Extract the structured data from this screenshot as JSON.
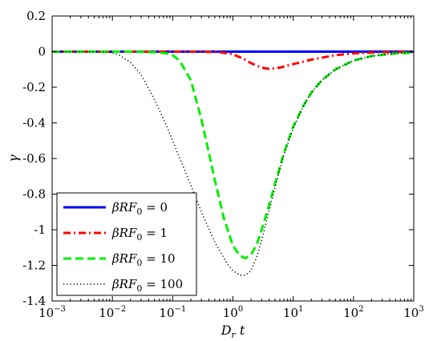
{
  "chart_data": {
    "type": "line",
    "title": "",
    "xlabel": "D_r t",
    "ylabel": "γ",
    "xscale": "log",
    "xlim": [
      0.001,
      1000
    ],
    "ylim": [
      -1.4,
      0.2
    ],
    "grid": false,
    "legend_position": "bottom-left",
    "x_ticks": [
      {
        "value": 0.001,
        "base": "10",
        "exp": "−3"
      },
      {
        "value": 0.01,
        "base": "10",
        "exp": "−2"
      },
      {
        "value": 0.1,
        "base": "10",
        "exp": "−1"
      },
      {
        "value": 1,
        "base": "10",
        "exp": "0"
      },
      {
        "value": 10,
        "base": "10",
        "exp": "1"
      },
      {
        "value": 100,
        "base": "10",
        "exp": "2"
      },
      {
        "value": 1000,
        "base": "10",
        "exp": "3"
      }
    ],
    "y_ticks": [
      {
        "value": 0.2,
        "label": "0.2"
      },
      {
        "value": 0,
        "label": "0"
      },
      {
        "value": -0.2,
        "label": "-0.2"
      },
      {
        "value": -0.4,
        "label": "-0.4"
      },
      {
        "value": -0.6,
        "label": "-0.6"
      },
      {
        "value": -0.8,
        "label": "-0.8"
      },
      {
        "value": -1.0,
        "label": "-1"
      },
      {
        "value": -1.2,
        "label": "-1.2"
      },
      {
        "value": -1.4,
        "label": "-1.4"
      }
    ],
    "series": [
      {
        "name": "βRF₀ = 0",
        "legend_lhs": "βRF",
        "legend_sub": "0",
        "legend_rhs": " = 0",
        "color": "#0000ff",
        "style": "solid",
        "x": [
          0.001,
          0.01,
          0.1,
          1,
          10,
          100,
          1000
        ],
        "y": [
          0,
          0,
          0,
          0,
          0,
          0,
          0
        ]
      },
      {
        "name": "βRF₀ = 1",
        "legend_lhs": "βRF",
        "legend_sub": "0",
        "legend_rhs": " = 1",
        "color": "#ff0000",
        "style": "dashdot",
        "x": [
          0.001,
          0.1,
          0.3,
          0.6,
          1,
          1.5,
          2,
          3,
          4,
          6,
          10,
          20,
          50,
          100,
          300,
          1000
        ],
        "y": [
          0,
          0,
          0,
          -0.003,
          -0.015,
          -0.04,
          -0.065,
          -0.09,
          -0.097,
          -0.09,
          -0.07,
          -0.045,
          -0.02,
          -0.01,
          -0.003,
          0
        ]
      },
      {
        "name": "βRF₀ = 10",
        "legend_lhs": "βRF",
        "legend_sub": "0",
        "legend_rhs": " = 10",
        "color": "#00ee00",
        "style": "dashed",
        "x": [
          0.001,
          0.02,
          0.05,
          0.08,
          0.1,
          0.13,
          0.2,
          0.3,
          0.5,
          0.7,
          1,
          1.3,
          1.6,
          2,
          2.5,
          3,
          4,
          5,
          7,
          10,
          15,
          20,
          30,
          50,
          100,
          200,
          500,
          1000
        ],
        "y": [
          0,
          0,
          -0.003,
          -0.01,
          -0.02,
          -0.05,
          -0.16,
          -0.38,
          -0.72,
          -0.93,
          -1.09,
          -1.145,
          -1.16,
          -1.14,
          -1.08,
          -1.0,
          -0.86,
          -0.74,
          -0.57,
          -0.42,
          -0.3,
          -0.23,
          -0.16,
          -0.1,
          -0.05,
          -0.025,
          -0.01,
          -0.005
        ]
      },
      {
        "name": "βRF₀ = 100",
        "legend_lhs": "βRF",
        "legend_sub": "0",
        "legend_rhs": " = 100",
        "color": "#000000",
        "style": "dotted",
        "x": [
          0.001,
          0.005,
          0.008,
          0.01,
          0.013,
          0.02,
          0.03,
          0.05,
          0.08,
          0.1,
          0.2,
          0.3,
          0.5,
          0.8,
          1,
          1.3,
          1.6,
          2,
          2.5,
          3,
          4,
          5,
          7,
          10,
          15,
          20,
          30,
          50,
          100,
          200,
          500,
          1000
        ],
        "y": [
          0,
          0,
          -0.003,
          -0.008,
          -0.02,
          -0.06,
          -0.13,
          -0.27,
          -0.42,
          -0.5,
          -0.75,
          -0.9,
          -1.07,
          -1.19,
          -1.23,
          -1.255,
          -1.255,
          -1.23,
          -1.15,
          -1.06,
          -0.89,
          -0.76,
          -0.58,
          -0.43,
          -0.3,
          -0.23,
          -0.16,
          -0.1,
          -0.05,
          -0.025,
          -0.01,
          -0.005
        ]
      }
    ]
  }
}
